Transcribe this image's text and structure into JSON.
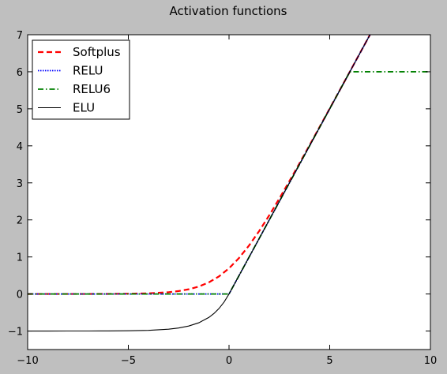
{
  "chart_data": {
    "type": "line",
    "title": "Activation functions",
    "xlabel": "",
    "ylabel": "",
    "xlim": [
      -10,
      10
    ],
    "ylim": [
      -1.5,
      7
    ],
    "xticks": [
      -10,
      -5,
      0,
      5,
      10
    ],
    "xtick_labels": [
      "−10",
      "−5",
      "0",
      "5",
      "10"
    ],
    "yticks": [
      -1,
      0,
      1,
      2,
      3,
      4,
      5,
      6,
      7
    ],
    "ytick_labels": [
      "−1",
      "0",
      "1",
      "2",
      "3",
      "4",
      "5",
      "6",
      "7"
    ],
    "grid": false,
    "legend_position": "top-left",
    "series": [
      {
        "name": "Softplus",
        "color": "#ff0000",
        "style": "dashed",
        "x": [
          -10,
          -9,
          -8,
          -7,
          -6,
          -5,
          -4,
          -3,
          -2.5,
          -2,
          -1.5,
          -1,
          -0.5,
          0,
          0.5,
          1,
          1.5,
          2,
          2.5,
          3,
          3.5,
          4,
          5,
          6,
          7
        ],
        "y": [
          5e-05,
          0.00012,
          0.00034,
          0.0009,
          0.0025,
          0.0067,
          0.018,
          0.0486,
          0.0789,
          0.1269,
          0.2014,
          0.3133,
          0.474,
          0.6931,
          0.974,
          1.3133,
          1.7014,
          2.1269,
          2.5789,
          3.0486,
          3.5297,
          4.0181,
          5.0067,
          6.0025,
          7.0009
        ]
      },
      {
        "name": "RELU",
        "color": "#0000ff",
        "style": "dotted",
        "x": [
          -10,
          0,
          7.3
        ],
        "y": [
          0,
          0,
          7.3
        ]
      },
      {
        "name": "RELU6",
        "color": "#008000",
        "style": "dashdot",
        "x": [
          -10,
          0,
          6,
          10
        ],
        "y": [
          0,
          0,
          6,
          6
        ]
      },
      {
        "name": "ELU",
        "color": "#000000",
        "style": "solid",
        "x": [
          -10,
          -9,
          -8,
          -7,
          -6,
          -5,
          -4,
          -3,
          -2.5,
          -2,
          -1.5,
          -1,
          -0.75,
          -0.5,
          -0.25,
          0,
          7.3
        ],
        "y": [
          -0.99995,
          -0.99988,
          -0.99966,
          -0.99909,
          -0.99752,
          -0.99326,
          -0.98168,
          -0.95021,
          -0.91792,
          -0.86466,
          -0.77687,
          -0.63212,
          -0.52763,
          -0.39347,
          -0.2212,
          0,
          7.3
        ]
      }
    ]
  }
}
